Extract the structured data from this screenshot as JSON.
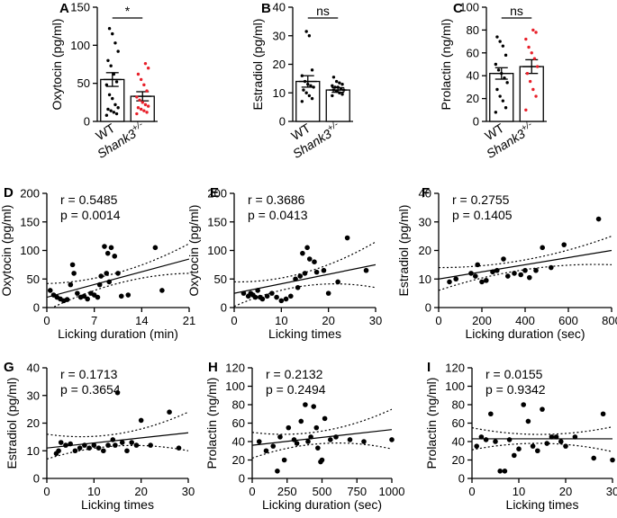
{
  "figure": {
    "panels": [
      {
        "id": "panel-a",
        "label": "A"
      },
      {
        "id": "panel-b",
        "label": "B"
      },
      {
        "id": "panel-c",
        "label": "C"
      },
      {
        "id": "panel-d",
        "label": "D"
      },
      {
        "id": "panel-e",
        "label": "E"
      },
      {
        "id": "panel-f",
        "label": "F"
      },
      {
        "id": "panel-g",
        "label": "G"
      },
      {
        "id": "panel-h",
        "label": "H"
      },
      {
        "id": "panel-i",
        "label": "I"
      }
    ]
  },
  "chart_data": [
    {
      "id": "panel-a",
      "panel": "A",
      "type": "bar",
      "ylabel": "Oxytocin (pg/ml)",
      "ylim": [
        0,
        150
      ],
      "yticks": [
        0,
        50,
        100,
        150
      ],
      "categories": [
        "WT",
        "Shank3+/-"
      ],
      "category_style": [
        "normal",
        "italic-superscript"
      ],
      "means": [
        55,
        33
      ],
      "sem": [
        9,
        6
      ],
      "point_colors": [
        "#000000",
        "#e8202a"
      ],
      "points": [
        [
          8,
          10,
          12,
          14,
          16,
          18,
          22,
          30,
          35,
          48,
          52,
          62,
          73,
          80,
          92,
          103,
          115,
          122
        ],
        [
          10,
          12,
          14,
          16,
          18,
          20,
          22,
          25,
          28,
          32,
          40,
          48,
          55,
          62,
          70,
          76
        ]
      ],
      "significance": "*"
    },
    {
      "id": "panel-b",
      "panel": "B",
      "type": "bar",
      "ylabel": "Estradiol (pg/ml)",
      "ylim": [
        0,
        40
      ],
      "yticks": [
        0,
        10,
        20,
        30,
        40
      ],
      "categories": [
        "WT",
        "Shank3+/-"
      ],
      "category_style": [
        "normal",
        "italic-superscript"
      ],
      "means": [
        14,
        11
      ],
      "sem": [
        2,
        0.8
      ],
      "point_colors": [
        "#000000",
        "#000000"
      ],
      "points": [
        [
          7,
          8,
          9,
          10,
          11,
          12,
          12.5,
          13,
          14,
          16,
          18,
          30,
          31.5
        ],
        [
          9,
          9.5,
          10,
          10.5,
          11,
          11,
          11.5,
          12,
          12,
          12.5,
          13,
          13.5,
          14,
          15.5
        ]
      ],
      "significance": "ns"
    },
    {
      "id": "panel-c",
      "panel": "C",
      "type": "bar",
      "ylabel": "Prolactin (ng/ml)",
      "ylim": [
        0,
        100
      ],
      "yticks": [
        0,
        20,
        40,
        60,
        80,
        100
      ],
      "categories": [
        "WT",
        "Shank3+/-"
      ],
      "category_style": [
        "normal",
        "italic-superscript"
      ],
      "means": [
        42,
        48
      ],
      "sem": [
        5,
        6
      ],
      "point_colors": [
        "#000000",
        "#e8202a"
      ],
      "points": [
        [
          8,
          12,
          18,
          22,
          28,
          34,
          38,
          42,
          45,
          50,
          58,
          66,
          70,
          74
        ],
        [
          10,
          22,
          28,
          35,
          42,
          48,
          55,
          60,
          65,
          72,
          78,
          80
        ]
      ],
      "significance": "ns"
    },
    {
      "id": "panel-d",
      "panel": "D",
      "type": "scatter",
      "xlabel": "Licking duration (min)",
      "ylabel": "Oxytocin (pg/ml)",
      "xlim": [
        0,
        21
      ],
      "ylim": [
        0,
        200
      ],
      "xticks": [
        0,
        7,
        14,
        21
      ],
      "yticks": [
        0,
        50,
        100,
        150,
        200
      ],
      "r": "r = 0.5485",
      "p": "p = 0.0014",
      "fit": [
        18,
        85
      ],
      "ci_upper": [
        42,
        112
      ],
      "ci_lower": [
        -5,
        60
      ],
      "points": [
        [
          0.5,
          30
        ],
        [
          1,
          22
        ],
        [
          1.5,
          18
        ],
        [
          2,
          15
        ],
        [
          2.5,
          12
        ],
        [
          3,
          14
        ],
        [
          3.5,
          40
        ],
        [
          3.8,
          75
        ],
        [
          4,
          60
        ],
        [
          4.5,
          25
        ],
        [
          5,
          18
        ],
        [
          5.5,
          20
        ],
        [
          6,
          15
        ],
        [
          6.5,
          25
        ],
        [
          7,
          22
        ],
        [
          7.5,
          18
        ],
        [
          7.8,
          40
        ],
        [
          8,
          55
        ],
        [
          8.5,
          107
        ],
        [
          8.8,
          60
        ],
        [
          9,
          95
        ],
        [
          9.2,
          45
        ],
        [
          9.5,
          105
        ],
        [
          10,
          90
        ],
        [
          10.5,
          60
        ],
        [
          11,
          20
        ],
        [
          12,
          22
        ],
        [
          16,
          105
        ],
        [
          17,
          30
        ]
      ]
    },
    {
      "id": "panel-e",
      "panel": "E",
      "type": "scatter",
      "xlabel": "Licking times",
      "ylabel": "Oxytocin (pg/ml)",
      "xlim": [
        0,
        30
      ],
      "ylim": [
        0,
        200
      ],
      "xticks": [
        0,
        10,
        20,
        30
      ],
      "yticks": [
        0,
        50,
        100,
        150,
        200
      ],
      "r": "r = 0.3686",
      "p": "p = 0.0413",
      "fit": [
        25,
        75
      ],
      "ci_upper": [
        45,
        115
      ],
      "ci_lower": [
        2,
        35
      ],
      "points": [
        [
          2,
          25
        ],
        [
          3,
          20
        ],
        [
          3.5,
          25
        ],
        [
          4,
          22
        ],
        [
          4.5,
          18
        ],
        [
          5,
          30
        ],
        [
          5.5,
          18
        ],
        [
          6,
          15
        ],
        [
          7,
          20
        ],
        [
          8,
          25
        ],
        [
          9,
          18
        ],
        [
          10,
          12
        ],
        [
          11,
          15
        ],
        [
          12,
          20
        ],
        [
          13,
          50
        ],
        [
          13.5,
          35
        ],
        [
          14,
          55
        ],
        [
          14.5,
          95
        ],
        [
          15,
          60
        ],
        [
          15.5,
          105
        ],
        [
          16,
          85
        ],
        [
          17,
          80
        ],
        [
          17.5,
          62
        ],
        [
          19,
          65
        ],
        [
          20,
          25
        ],
        [
          22,
          45
        ],
        [
          24,
          122
        ],
        [
          28,
          65
        ]
      ]
    },
    {
      "id": "panel-f",
      "panel": "F",
      "type": "scatter",
      "xlabel": "Licking duration (sec)",
      "ylabel": "Estradiol (pg/ml)",
      "xlim": [
        0,
        800
      ],
      "ylim": [
        0,
        40
      ],
      "xticks": [
        0,
        200,
        400,
        600,
        800
      ],
      "yticks": [
        0,
        10,
        20,
        30,
        40
      ],
      "r": "r = 0.2755",
      "p": "p = 0.1405",
      "fit": [
        10,
        20
      ],
      "ci_upper": [
        14,
        25
      ],
      "ci_lower": [
        6,
        15
      ],
      "points": [
        [
          50,
          9
        ],
        [
          80,
          10
        ],
        [
          150,
          12
        ],
        [
          170,
          11
        ],
        [
          180,
          15
        ],
        [
          200,
          9
        ],
        [
          220,
          9.5
        ],
        [
          250,
          12.5
        ],
        [
          270,
          13
        ],
        [
          300,
          17
        ],
        [
          320,
          11
        ],
        [
          350,
          12
        ],
        [
          380,
          11.5
        ],
        [
          400,
          13
        ],
        [
          420,
          10.5
        ],
        [
          450,
          13
        ],
        [
          480,
          21
        ],
        [
          520,
          14
        ],
        [
          580,
          22
        ],
        [
          740,
          31
        ]
      ]
    },
    {
      "id": "panel-g",
      "panel": "G",
      "type": "scatter",
      "xlabel": "Licking times",
      "ylabel": "Estradiol (pg/ml)",
      "xlim": [
        0,
        30
      ],
      "ylim": [
        0,
        40
      ],
      "xticks": [
        0,
        10,
        20,
        30
      ],
      "yticks": [
        0,
        10,
        20,
        30,
        40
      ],
      "r": "r = 0.1713",
      "p": "p = 0.3654",
      "fit": [
        11,
        16.5
      ],
      "ci_upper": [
        16,
        24
      ],
      "ci_lower": [
        7,
        10
      ],
      "points": [
        [
          2,
          9
        ],
        [
          2.5,
          10
        ],
        [
          3,
          13
        ],
        [
          4,
          12
        ],
        [
          5,
          12.5
        ],
        [
          6,
          10
        ],
        [
          7,
          11
        ],
        [
          8,
          12
        ],
        [
          9,
          11
        ],
        [
          10,
          12
        ],
        [
          11,
          11
        ],
        [
          12,
          10
        ],
        [
          13,
          12
        ],
        [
          14,
          14
        ],
        [
          14.5,
          12
        ],
        [
          15,
          31
        ],
        [
          16,
          13
        ],
        [
          17,
          10
        ],
        [
          18,
          13
        ],
        [
          19,
          12
        ],
        [
          20,
          21
        ],
        [
          22,
          12
        ],
        [
          26,
          24
        ],
        [
          28,
          11
        ]
      ]
    },
    {
      "id": "panel-h",
      "panel": "H",
      "type": "scatter",
      "xlabel": "Licking duration (sec)",
      "ylabel": "Prolactin (ng/ml)",
      "xlim": [
        0,
        1000
      ],
      "ylim": [
        0,
        120
      ],
      "xticks": [
        0,
        250,
        500,
        750,
        1000
      ],
      "yticks": [
        0,
        20,
        40,
        60,
        80,
        100,
        120
      ],
      "r": "r = 0.2132",
      "p": "p = 0.2494",
      "fit": [
        36,
        53
      ],
      "ci_upper": [
        50,
        75
      ],
      "ci_lower": [
        22,
        32
      ],
      "points": [
        [
          50,
          40
        ],
        [
          100,
          30
        ],
        [
          150,
          35
        ],
        [
          180,
          8
        ],
        [
          200,
          45
        ],
        [
          230,
          20
        ],
        [
          260,
          55
        ],
        [
          300,
          42
        ],
        [
          320,
          38
        ],
        [
          350,
          62
        ],
        [
          380,
          80
        ],
        [
          400,
          40
        ],
        [
          420,
          45
        ],
        [
          440,
          78
        ],
        [
          460,
          55
        ],
        [
          470,
          33
        ],
        [
          490,
          18
        ],
        [
          500,
          20
        ],
        [
          520,
          65
        ],
        [
          560,
          42
        ],
        [
          600,
          45
        ],
        [
          700,
          42
        ],
        [
          800,
          40
        ],
        [
          1000,
          42
        ]
      ]
    },
    {
      "id": "panel-i",
      "panel": "I",
      "type": "scatter",
      "xlabel": "Licking times",
      "ylabel": "Prolactin (ng/ml)",
      "xlim": [
        0,
        30
      ],
      "ylim": [
        0,
        120
      ],
      "xticks": [
        0,
        10,
        20,
        30
      ],
      "yticks": [
        0,
        20,
        40,
        60,
        80,
        100,
        120
      ],
      "r": "r = 0.0155",
      "p": "p = 0.9342",
      "fit": [
        43,
        43
      ],
      "ci_upper": [
        55,
        56
      ],
      "ci_lower": [
        31,
        29
      ],
      "points": [
        [
          1,
          35
        ],
        [
          2,
          45
        ],
        [
          3,
          42
        ],
        [
          4,
          70
        ],
        [
          5,
          40
        ],
        [
          6,
          8
        ],
        [
          7,
          8
        ],
        [
          8,
          42
        ],
        [
          9,
          25
        ],
        [
          10,
          32
        ],
        [
          11,
          80
        ],
        [
          12,
          62
        ],
        [
          13,
          35
        ],
        [
          14,
          30
        ],
        [
          15,
          75
        ],
        [
          16,
          38
        ],
        [
          17,
          45
        ],
        [
          18,
          45
        ],
        [
          19,
          40
        ],
        [
          20,
          35
        ],
        [
          22,
          45
        ],
        [
          26,
          22
        ],
        [
          28,
          70
        ],
        [
          30,
          20
        ]
      ]
    }
  ]
}
